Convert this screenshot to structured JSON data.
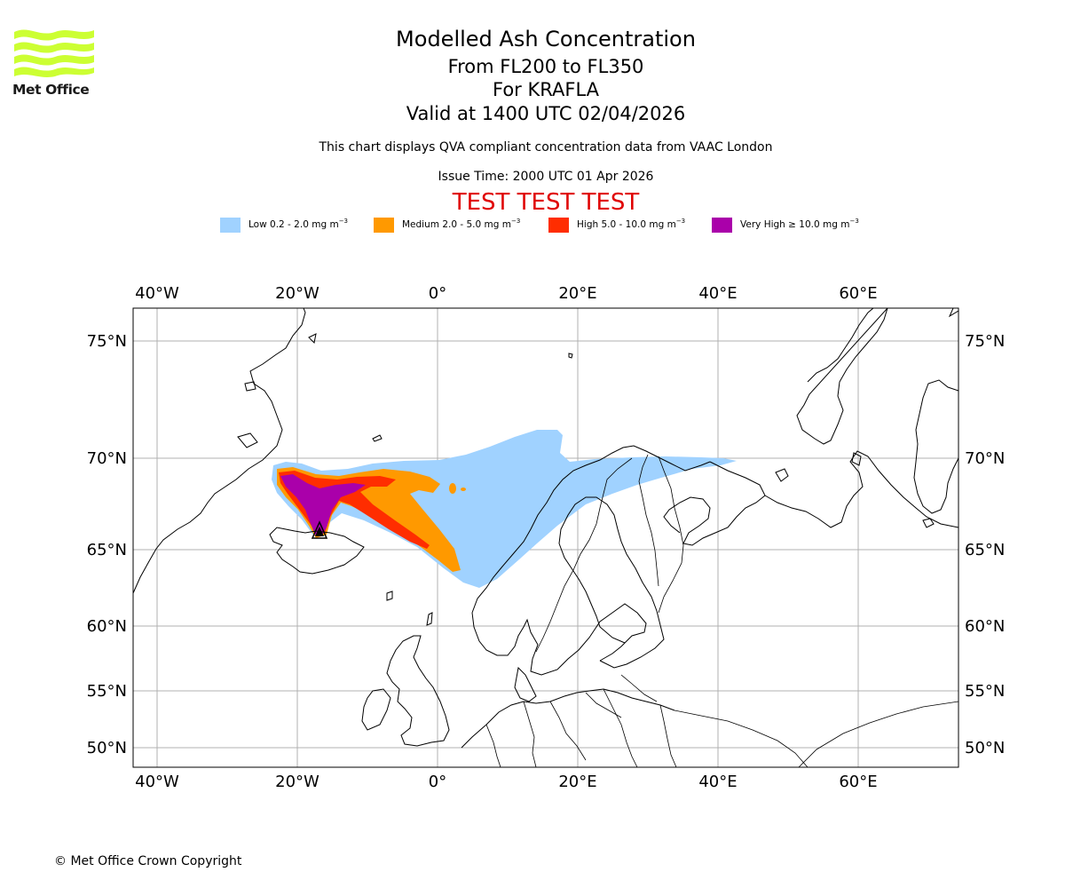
{
  "logo": {
    "text": "Met Office",
    "color": "#ccff33"
  },
  "titles": {
    "main": "Modelled Ash Concentration",
    "levels": "From FL200 to FL350",
    "volcano": "For KRAFLA",
    "valid": "Valid at 1400 UTC 02/04/2026"
  },
  "info": {
    "note": "This chart displays QVA compliant concentration data from VAAC London",
    "issue_time": "Issue Time: 2000 UTC 01 Apr 2026"
  },
  "test_banner": "TEST TEST TEST",
  "legend": [
    {
      "label": "Low 0.2 - 2.0 mg m",
      "unit_exp": "−3",
      "color": "#a0d2ff"
    },
    {
      "label": "Medium 2.0 - 5.0 mg m",
      "unit_exp": "−3",
      "color": "#ff9900"
    },
    {
      "label": "High 5.0 - 10.0 mg m",
      "unit_exp": "−3",
      "color": "#ff2d00"
    },
    {
      "label": "Very High  ≥  10.0 mg m",
      "unit_exp": "−3",
      "color": "#aa00aa"
    }
  ],
  "map": {
    "lon_ticks": [
      "40°W",
      "20°W",
      "0°",
      "20°E",
      "40°E",
      "60°E"
    ],
    "lat_ticks": [
      "75°N",
      "70°N",
      "65°N",
      "60°N",
      "55°N",
      "50°N"
    ]
  },
  "copyright": "© Met Office Crown Copyright"
}
